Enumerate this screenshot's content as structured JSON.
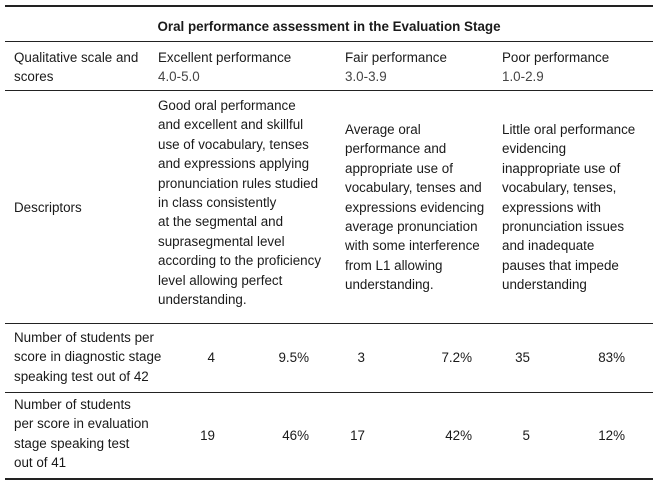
{
  "title": "Oral performance assessment in the Evaluation Stage",
  "header": {
    "scale_label": [
      "Qualitative scale and",
      "scores"
    ],
    "excellent": [
      "Excellent performance",
      "4.0-5.0"
    ],
    "fair": [
      "Fair performance",
      "3.0-3.9"
    ],
    "poor": [
      "Poor performance",
      "1.0-2.9"
    ]
  },
  "descriptors": {
    "label": "Descriptors",
    "excellent": [
      "Good oral performance",
      "and excellent and skillful",
      "use of vocabulary, tenses",
      "and expressions applying",
      "pronunciation rules studied",
      "in class consistently",
      "at the segmental and",
      "suprasegmental level",
      "according to the proficiency",
      "level allowing perfect",
      "understanding."
    ],
    "fair": [
      "Average oral",
      "performance and",
      "appropriate use of",
      "vocabulary, tenses and",
      "expressions evidencing",
      "average pronunciation",
      "with some interference",
      "from L1 allowing",
      "understanding."
    ],
    "poor": [
      "Little oral performance",
      "evidencing",
      "inappropriate use of",
      "vocabulary, tenses,",
      "expressions with",
      "pronunciation issues",
      "and inadequate",
      "pauses that impede",
      "understanding"
    ]
  },
  "diagnostic": {
    "label": [
      "Number of students per",
      "score in diagnostic stage",
      "speaking test out of 42"
    ],
    "excellent_count": "4",
    "excellent_pct": "9.5%",
    "fair_count": "3",
    "fair_pct": "7.2%",
    "poor_count": "35",
    "poor_pct": "83%"
  },
  "evaluation": {
    "label": [
      "Number of students",
      "per score in evaluation",
      "stage speaking test",
      "out of 41"
    ],
    "excellent_count": "19",
    "excellent_pct": "46%",
    "fair_count": "17",
    "fair_pct": "42%",
    "poor_count": "5",
    "poor_pct": "12%"
  }
}
